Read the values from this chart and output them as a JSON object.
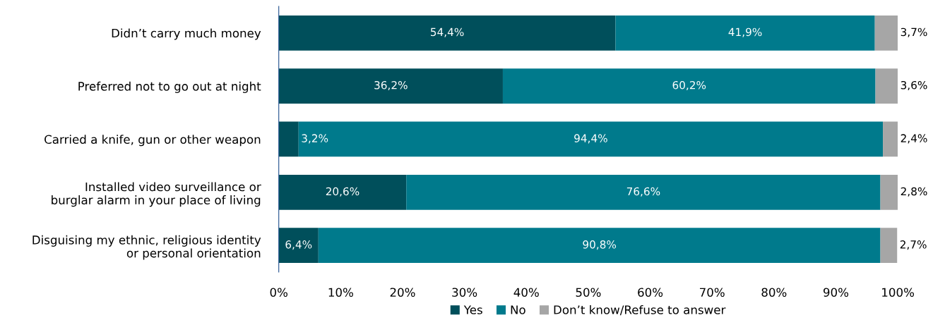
{
  "chart_data": {
    "type": "bar",
    "orientation": "horizontal",
    "stacked": true,
    "categories": [
      "Didn’t carry much money",
      "Preferred not to go out at night",
      "Carried a knife, gun or other weapon",
      "Installed video surveillance or\nburglar alarm in your place of living",
      "Disguising my ethnic, religious identity\nor personal orientation"
    ],
    "series": [
      {
        "name": "Yes",
        "color": "#004f5b",
        "values": [
          54.4,
          36.2,
          3.2,
          20.6,
          6.4
        ],
        "value_labels": [
          "54,4%",
          "36,2%",
          "3,2%",
          "20,6%",
          "6,4%"
        ]
      },
      {
        "name": "No",
        "color": "#007a8c",
        "values": [
          41.9,
          60.2,
          94.4,
          76.6,
          90.8
        ],
        "value_labels": [
          "41,9%",
          "60,2%",
          "94,4%",
          "76,6%",
          "90,8%"
        ]
      },
      {
        "name": "Don’t know/Refuse to answer",
        "color": "#a6a6a6",
        "values": [
          3.7,
          3.6,
          2.4,
          2.8,
          2.7
        ],
        "value_labels": [
          "3,7%",
          "3,6%",
          "2,4%",
          "2,8%",
          "2,7%"
        ]
      }
    ],
    "xlim": [
      0,
      100
    ],
    "xticks": [
      {
        "value": 0,
        "label": "0%"
      },
      {
        "value": 10,
        "label": "10%"
      },
      {
        "value": 20,
        "label": "20%"
      },
      {
        "value": 30,
        "label": "30%"
      },
      {
        "value": 40,
        "label": "40%"
      },
      {
        "value": 50,
        "label": "50%"
      },
      {
        "value": 60,
        "label": "60%"
      },
      {
        "value": 70,
        "label": "70%"
      },
      {
        "value": 80,
        "label": "80%"
      },
      {
        "value": 90,
        "label": "90%"
      },
      {
        "value": 100,
        "label": "100%"
      }
    ],
    "grid": false,
    "legend": "bottom"
  }
}
